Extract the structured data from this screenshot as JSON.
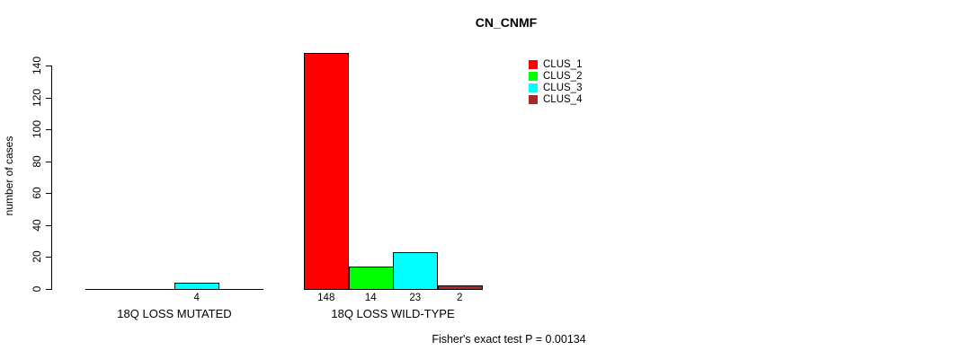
{
  "chart_data": {
    "type": "bar",
    "title": "CN_CNMF",
    "ylabel": "number of cases",
    "xlabel": "",
    "ylim": [
      0,
      140
    ],
    "yticks": [
      0,
      20,
      40,
      60,
      80,
      100,
      120,
      140
    ],
    "grid": false,
    "legend_position": "top-right",
    "categories": [
      "18Q LOSS MUTATED",
      "18Q LOSS WILD-TYPE"
    ],
    "series": [
      {
        "name": "CLUS_1",
        "color": "#FF0000",
        "values": [
          0,
          148
        ]
      },
      {
        "name": "CLUS_2",
        "color": "#00FF00",
        "values": [
          0,
          14
        ]
      },
      {
        "name": "CLUS_3",
        "color": "#00FFFF",
        "values": [
          4,
          23
        ]
      },
      {
        "name": "CLUS_4",
        "color": "#A52A2A",
        "values": [
          0,
          2
        ]
      }
    ],
    "bar_labels": [
      [
        "",
        "",
        "4",
        ""
      ],
      [
        "148",
        "14",
        "23",
        "2"
      ]
    ],
    "annotation": "Fisher's exact test P = 0.00134",
    "background": "#FFFFFF",
    "axis_color": "#000000"
  }
}
